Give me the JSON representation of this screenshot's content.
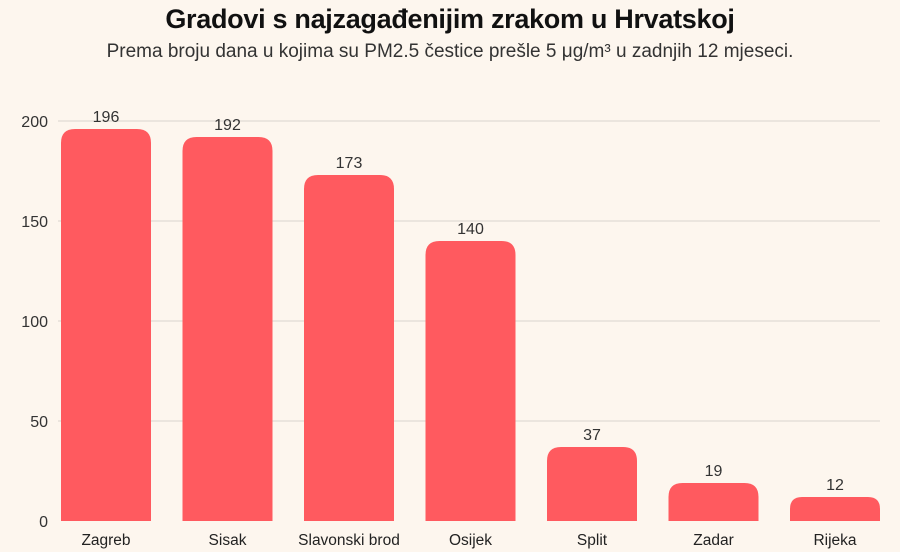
{
  "chart_data": {
    "type": "bar",
    "title": "Gradovi s najzagađenijim zrakom u Hrvatskoj",
    "subtitle": "Prema broju dana u kojima su PM2.5 čestice prešle 5 μg/m³ u zadnjih 12 mjeseci.",
    "categories": [
      "Zagreb",
      "Sisak",
      "Slavonski brod",
      "Osijek",
      "Split",
      "Zadar",
      "Rijeka"
    ],
    "values": [
      196,
      192,
      173,
      140,
      37,
      19,
      12
    ],
    "xlabel": "",
    "ylabel": "",
    "ylim": [
      0,
      200
    ],
    "yticks": [
      0,
      50,
      100,
      150,
      200
    ],
    "grid": true,
    "colors": {
      "bar": "#ff5a5f",
      "grid": "#d9d4cf",
      "background": "#fdf6ee"
    }
  }
}
